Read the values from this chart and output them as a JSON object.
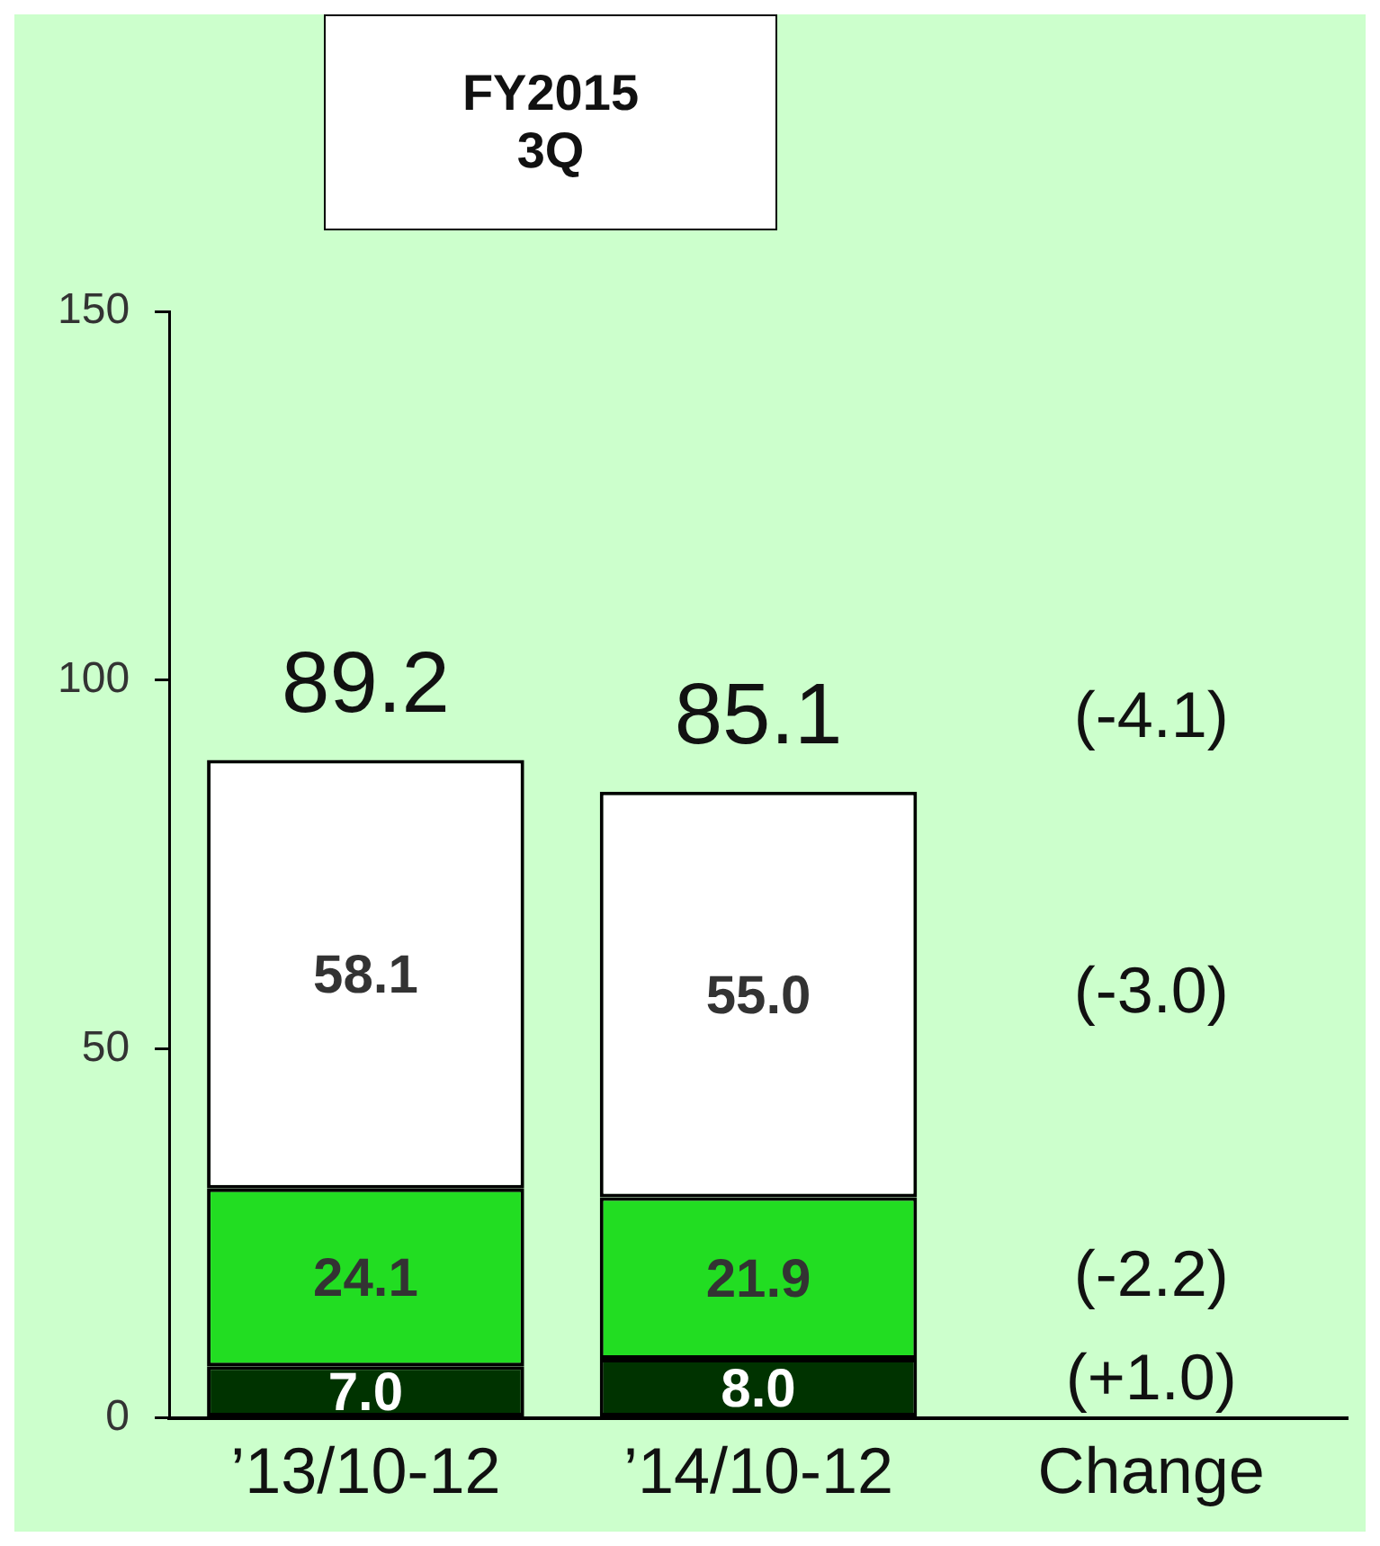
{
  "chart_data": {
    "type": "bar",
    "title": "FY2015\n3Q",
    "stacked": true,
    "categories": [
      "’13/10-12",
      "’14/10-12",
      "Change"
    ],
    "series": [
      {
        "color": "#003300",
        "values": [
          7.0,
          8.0,
          null
        ],
        "value_labels": [
          "7.0",
          "8.0",
          null
        ]
      },
      {
        "color": "#22dd22",
        "values": [
          24.1,
          21.9,
          null
        ],
        "value_labels": [
          "24.1",
          "21.9",
          null
        ]
      },
      {
        "color": "#ffffff",
        "values": [
          58.1,
          55.0,
          null
        ],
        "value_labels": [
          "58.1",
          "55.0",
          null
        ]
      }
    ],
    "totals": [
      "89.2",
      "85.1"
    ],
    "ylim": [
      0,
      150
    ],
    "yticks": [
      0,
      50,
      100,
      150
    ],
    "grid": false,
    "legend": false,
    "annotations": [
      "(-4.1)",
      "(-3.0)",
      "(-2.2)",
      "(+1.0)"
    ]
  }
}
